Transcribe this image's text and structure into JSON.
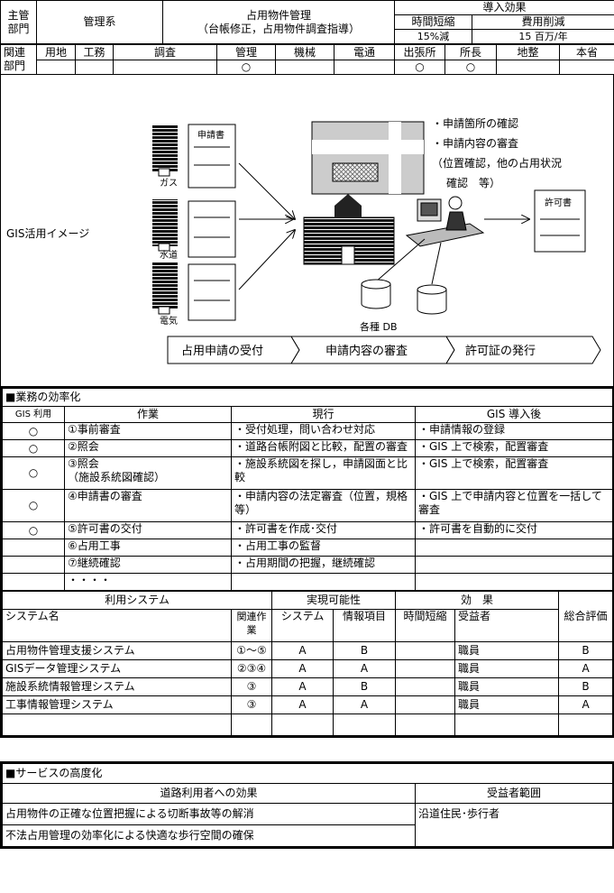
{
  "header": {
    "dept_label": "主管部門",
    "dept": "管理系",
    "subject": "占用物件管理",
    "subject_note": "（台帳修正，占用物件調査指導）",
    "effect_label": "導入効果",
    "time_label": "時間短縮",
    "cost_label": "費用削減",
    "time_value": "15%減",
    "cost_value": "15 百万/年"
  },
  "related": {
    "label": "関連部門",
    "columns": [
      {
        "name": "用地"
      },
      {
        "name": "工務"
      },
      {
        "name": "調査"
      },
      {
        "name": "管理",
        "mark": "○"
      },
      {
        "name": "機械"
      },
      {
        "name": "電通"
      },
      {
        "name": "出張所",
        "mark": "○"
      },
      {
        "name": "所長",
        "mark": "○"
      },
      {
        "name": "地整"
      },
      {
        "name": "本省"
      }
    ]
  },
  "diagram": {
    "label": "GIS活用イメージ",
    "application": "申請書",
    "sources": [
      "ガス",
      "水道",
      "電気"
    ],
    "db": "各種 DB",
    "permit": "許可書",
    "notes": [
      "・申請箇所の確認",
      "・申請内容の審査",
      "（位置確認，他の占用状況",
      "確認　等）"
    ],
    "steps": [
      "占用申請の受付",
      "申請内容の審査",
      "許可証の発行"
    ]
  },
  "efficiency": {
    "title": "■業務の効率化",
    "headers": [
      "GIS 利用",
      "作業",
      "現行",
      "GIS 導入後"
    ],
    "rows": [
      {
        "gis": "○",
        "task": "①事前審査",
        "current": "・受付処理，問い合わせ対応",
        "after": "・申請情報の登録"
      },
      {
        "gis": "○",
        "task": "②照会",
        "current": "・道路台帳附図と比較，配置の審査",
        "after": "・GIS 上で検索，配置審査"
      },
      {
        "gis": "○",
        "task": "③照会\n（施設系統図確認）",
        "current": "・施設系統図を探し，申請図面と比較",
        "after": "・GIS 上で検索，配置審査"
      },
      {
        "gis": "○",
        "task": "④申請書の審査",
        "current": "・申請内容の法定審査（位置，規格等）",
        "after": "・GIS 上で申請内容と位置を一括して審査"
      },
      {
        "gis": "○",
        "task": "⑤許可書の交付",
        "current": "・許可書を作成･交付",
        "after": "・許可書を自動的に交付"
      },
      {
        "task": "⑥占用工事",
        "current": "・占用工事の監督"
      },
      {
        "task": "⑦継続確認",
        "current": "・占用期間の把握，継続確認"
      },
      {
        "task": "・・・・"
      }
    ]
  },
  "systems": {
    "headers": {
      "group": "利用システム",
      "feasibility": "実現可能性",
      "effect": "効　果",
      "overall": "総合評価",
      "name": "システム名",
      "tasks": "関連作業",
      "system": "システム",
      "info": "情報項目",
      "time": "時間短縮",
      "beneficiary": "受益者"
    },
    "rows": [
      {
        "name": "占用物件管理支援システム",
        "tasks": "①～⑤",
        "system": "A",
        "info": "B",
        "beneficiary": "職員",
        "overall": "B"
      },
      {
        "name": "GISデータ管理システム",
        "tasks": "②③④",
        "system": "A",
        "info": "A",
        "beneficiary": "職員",
        "overall": "A"
      },
      {
        "name": "施設系統情報管理システム",
        "tasks": "③",
        "system": "A",
        "info": "B",
        "beneficiary": "職員",
        "overall": "B"
      },
      {
        "name": "工事情報管理システム",
        "tasks": "③",
        "system": "A",
        "info": "A",
        "beneficiary": "職員",
        "overall": "A"
      }
    ]
  },
  "service": {
    "title": "■サービスの高度化",
    "headers": [
      "道路利用者への効果",
      "受益者範囲"
    ],
    "effects": [
      "占用物件の正確な位置把握による切断事故等の解消",
      "不法占用管理の効率化による快適な歩行空間の確保"
    ],
    "beneficiary": "沿道住民･歩行者"
  }
}
